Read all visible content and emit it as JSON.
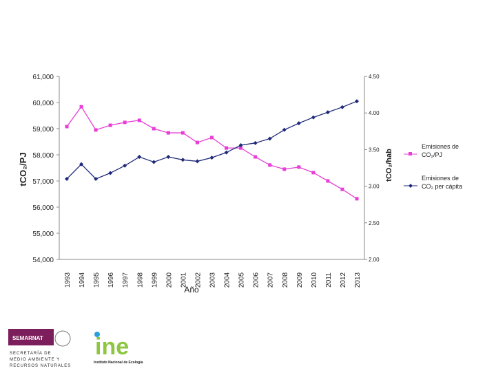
{
  "chart_data": {
    "type": "line",
    "x_label": "Año",
    "y_label": "tCO₂/PJ",
    "y2_label": "tCO₂/hab",
    "categories": [
      "1993",
      "1994",
      "1995",
      "1996",
      "1997",
      "1998",
      "1999",
      "2000",
      "2001",
      "2002",
      "2003",
      "2004",
      "2005",
      "2006",
      "2007",
      "2008",
      "2009",
      "2010",
      "2011",
      "2012",
      "2013"
    ],
    "series": [
      {
        "name": "Emisiones de CO₂/PJ",
        "color": "#e83ed6",
        "marker": "square",
        "values": [
          59080,
          59840,
          58950,
          59130,
          59240,
          59320,
          59000,
          58840,
          58840,
          58470,
          58660,
          58260,
          58260,
          57920,
          57610,
          57450,
          57530,
          57320,
          57000,
          56680,
          56320
        ]
      },
      {
        "name": "Emisiones de CO₂ per cápita",
        "color": "#1f2a7a",
        "marker": "diamond",
        "axis": "y2",
        "values": [
          3.1,
          3.3,
          3.1,
          3.18,
          3.28,
          3.4,
          3.33,
          3.4,
          3.36,
          3.34,
          3.39,
          3.46,
          3.56,
          3.59,
          3.65,
          3.77,
          3.86,
          3.94,
          4.01,
          4.08,
          4.16
        ]
      }
    ],
    "ylim": [
      54000,
      61000
    ],
    "yticks": [
      {
        "value": 54000,
        "label": "54,000"
      },
      {
        "value": 55000,
        "label": "55,000"
      },
      {
        "value": 56000,
        "label": "56,000"
      },
      {
        "value": 57000,
        "label": "57,000"
      },
      {
        "value": 58000,
        "label": "58,000"
      },
      {
        "value": 59000,
        "label": "59,000"
      },
      {
        "value": 60000,
        "label": "60,000"
      },
      {
        "value": 61000,
        "label": "61,000"
      }
    ],
    "y2lim": [
      2.0,
      4.5
    ],
    "y2ticks": [
      {
        "value": 2.0,
        "label": "2.00"
      },
      {
        "value": 2.5,
        "label": "2.50"
      },
      {
        "value": 3.0,
        "label": "3.00"
      },
      {
        "value": 3.5,
        "label": "3.50"
      },
      {
        "value": 4.0,
        "label": "4.00"
      },
      {
        "value": 4.5,
        "label": "4.50"
      }
    ],
    "legend": "right"
  },
  "logos": {
    "semarnat": "SEMARNAT",
    "semarnat_lines": [
      "SECRETARÍA DE",
      "MEDIO AMBIENTE Y",
      "RECURSOS NATURALES"
    ],
    "ine": "ine",
    "ine_name": "Instituto Nacional de Ecología"
  }
}
